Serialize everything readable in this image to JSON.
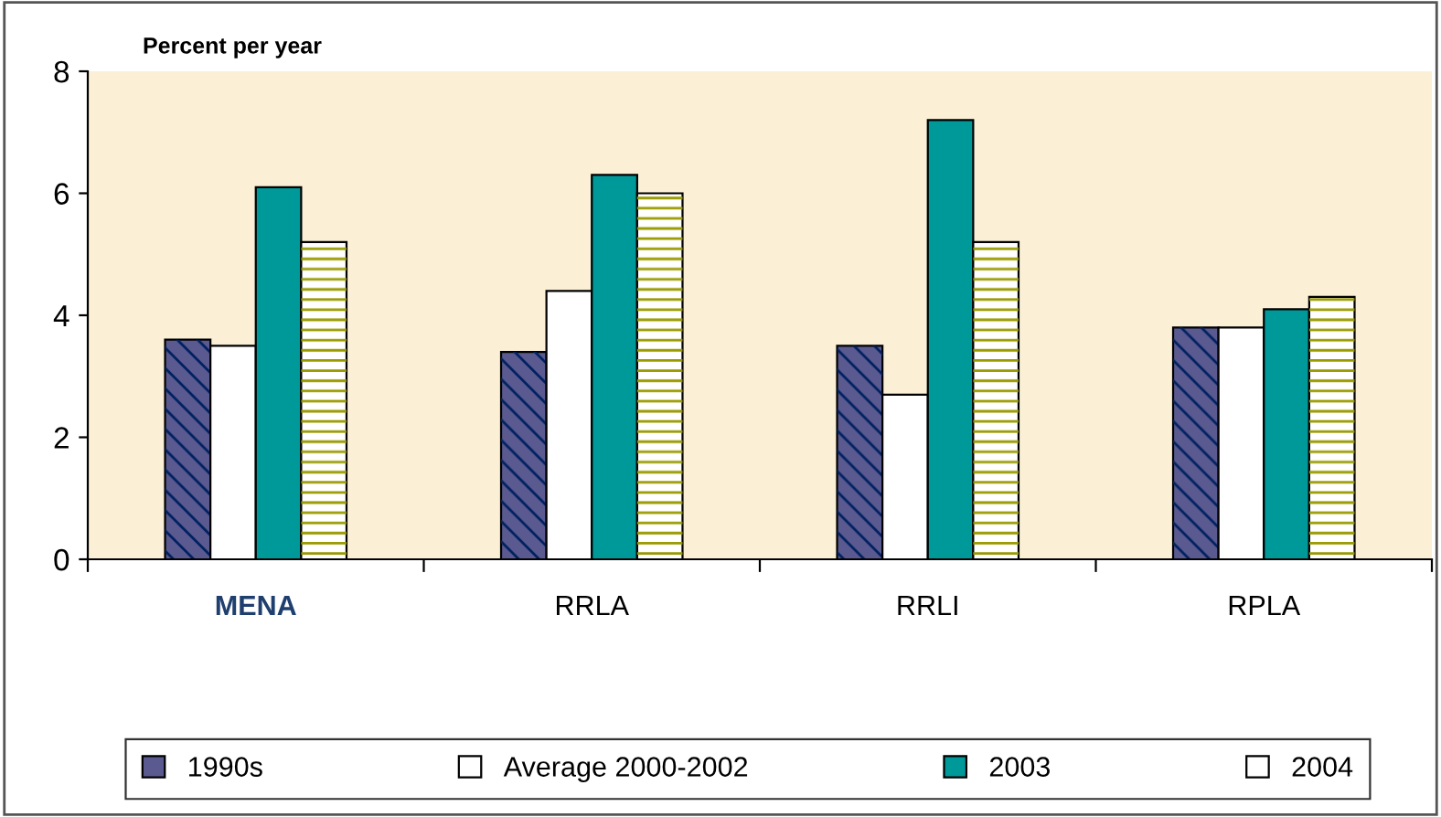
{
  "chart_data": {
    "type": "bar",
    "ylabel": "Percent per year",
    "categories": [
      "MENA",
      "RRLA",
      "RRLI",
      "RPLA"
    ],
    "series": [
      {
        "name": "1990s",
        "color": "#5a5a90",
        "values": [
          3.6,
          3.4,
          3.5,
          3.8
        ]
      },
      {
        "name": "Average 2000-2002",
        "color": "#ffffff",
        "values": [
          3.5,
          4.4,
          2.7,
          3.8
        ]
      },
      {
        "name": "2003",
        "color": "#009999",
        "values": [
          6.1,
          6.3,
          7.2,
          4.1
        ]
      },
      {
        "name": "2004",
        "color": "#ffffff",
        "values": [
          5.2,
          6.0,
          5.2,
          4.3
        ]
      }
    ],
    "ylim": [
      0,
      8
    ],
    "yticks": [
      0,
      2,
      4,
      6,
      8
    ],
    "grid": false,
    "legend": "bottom"
  }
}
